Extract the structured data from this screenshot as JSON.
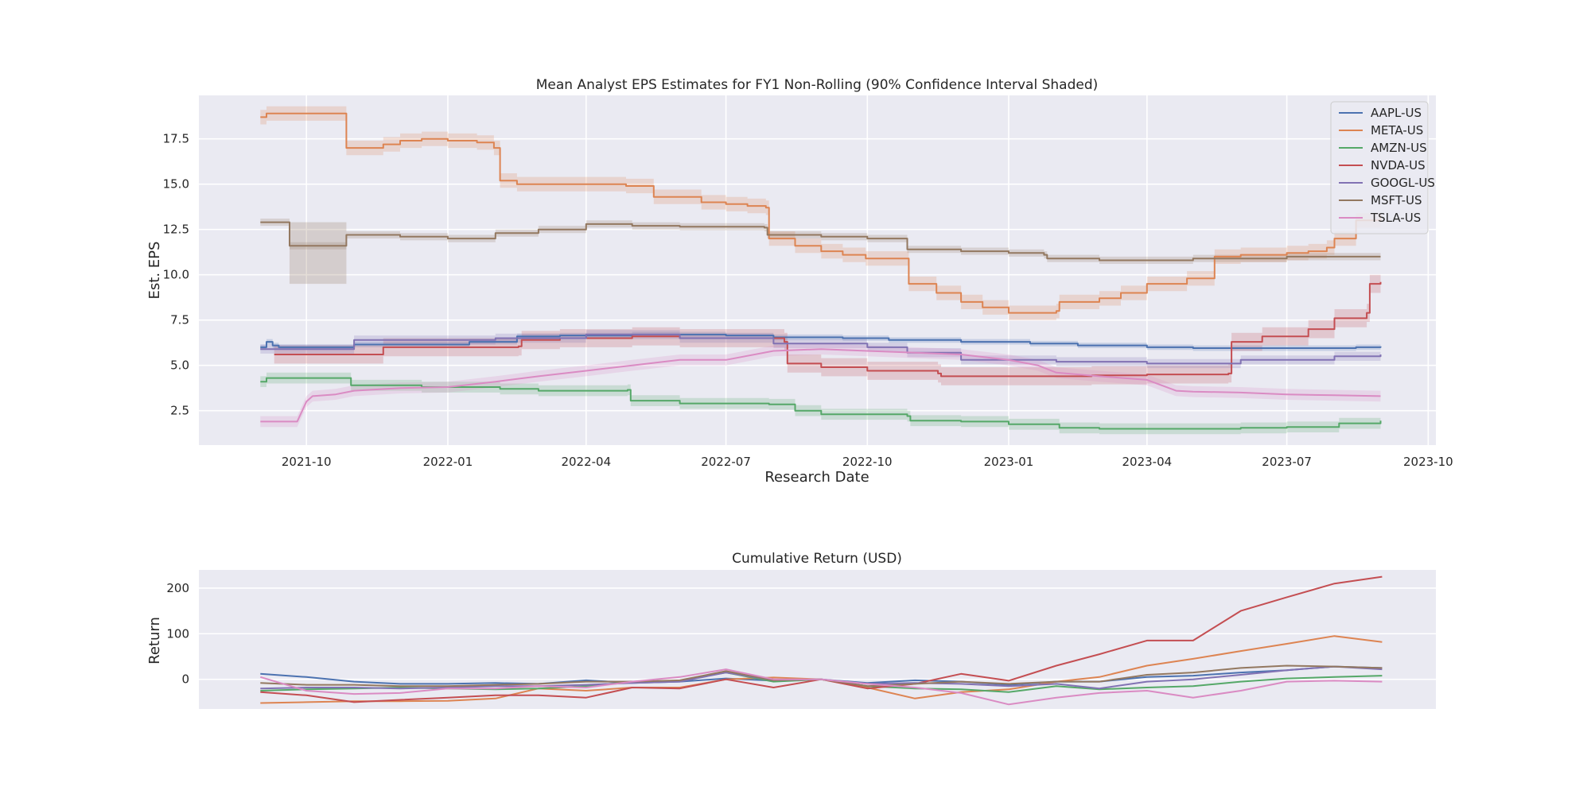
{
  "chart_data": [
    {
      "type": "line",
      "title": "Mean Analyst EPS Estimates for FY1 Non-Rolling (90% Confidence Interval Shaded)",
      "xlabel": "Research Date",
      "ylabel": "Est. EPS",
      "x_is_date": true,
      "xlim": [
        "2021-07-23",
        "2023-10-06"
      ],
      "ylim": [
        0.6,
        19.9
      ],
      "xticks": [
        "2021-10-01",
        "2022-01-01",
        "2022-04-01",
        "2022-07-01",
        "2022-10-01",
        "2023-01-01",
        "2023-04-01",
        "2023-07-01",
        "2023-10-01"
      ],
      "xtick_labels": [
        "2021-10",
        "2022-01",
        "2022-04",
        "2022-07",
        "2022-10",
        "2023-01",
        "2023-04",
        "2023-07",
        "2023-10"
      ],
      "yticks": [
        2.5,
        5.0,
        7.5,
        10.0,
        12.5,
        15.0,
        17.5
      ],
      "ytick_labels": [
        "2.5",
        "5.0",
        "7.5",
        "10.0",
        "12.5",
        "15.0",
        "17.5"
      ],
      "grid": true,
      "legend_position": "top-right",
      "series": [
        {
          "name": "AAPL-US",
          "color": "#4c72b0",
          "ci": 0.15,
          "step": true,
          "x": [
            "2021-09-01",
            "2021-09-05",
            "2021-09-09",
            "2021-09-13",
            "2021-11-01",
            "2022-01-15",
            "2022-02-15",
            "2022-03-15",
            "2022-05-01",
            "2022-07-01",
            "2022-08-01",
            "2022-09-15",
            "2022-10-15",
            "2022-12-01",
            "2023-01-15",
            "2023-02-15",
            "2023-04-01",
            "2023-05-01",
            "2023-07-01",
            "2023-08-15",
            "2023-08-31"
          ],
          "y": [
            6.0,
            6.3,
            6.1,
            6.0,
            6.15,
            6.3,
            6.6,
            6.65,
            6.7,
            6.65,
            6.55,
            6.5,
            6.4,
            6.3,
            6.2,
            6.1,
            6.0,
            5.95,
            5.95,
            6.0,
            6.05
          ]
        },
        {
          "name": "META-US",
          "color": "#dd8452",
          "ci": 0.4,
          "step": true,
          "x": [
            "2021-09-01",
            "2021-09-05",
            "2021-10-25",
            "2021-10-27",
            "2021-11-20",
            "2021-12-01",
            "2021-12-15",
            "2022-01-01",
            "2022-01-20",
            "2022-01-31",
            "2022-02-04",
            "2022-02-15",
            "2022-03-01",
            "2022-04-27",
            "2022-05-15",
            "2022-06-01",
            "2022-06-15",
            "2022-07-01",
            "2022-07-15",
            "2022-07-27",
            "2022-07-29",
            "2022-08-15",
            "2022-09-01",
            "2022-09-15",
            "2022-09-30",
            "2022-10-26",
            "2022-10-28",
            "2022-11-15",
            "2022-12-01",
            "2022-12-15",
            "2023-01-01",
            "2023-02-01",
            "2023-02-03",
            "2023-03-01",
            "2023-03-15",
            "2023-04-01",
            "2023-04-27",
            "2023-05-15",
            "2023-06-01",
            "2023-07-01",
            "2023-07-15",
            "2023-07-27",
            "2023-08-01",
            "2023-08-15",
            "2023-08-31"
          ],
          "y": [
            18.7,
            18.9,
            18.9,
            17.0,
            17.2,
            17.4,
            17.5,
            17.4,
            17.3,
            17.0,
            15.2,
            15.0,
            15.0,
            14.9,
            14.3,
            14.3,
            14.0,
            13.9,
            13.8,
            13.7,
            12.0,
            11.6,
            11.3,
            11.1,
            10.9,
            10.9,
            9.5,
            9.0,
            8.5,
            8.2,
            7.9,
            8.0,
            8.5,
            8.7,
            9.0,
            9.5,
            9.8,
            11.0,
            11.1,
            11.2,
            11.3,
            11.5,
            12.0,
            13.0,
            13.3
          ]
        },
        {
          "name": "AMZN-US",
          "color": "#55a868",
          "ci": 0.3,
          "step": true,
          "x": [
            "2021-09-01",
            "2021-09-05",
            "2021-10-28",
            "2021-10-30",
            "2021-12-15",
            "2022-02-04",
            "2022-03-01",
            "2022-04-28",
            "2022-04-30",
            "2022-06-01",
            "2022-07-29",
            "2022-08-15",
            "2022-09-01",
            "2022-10-27",
            "2022-10-29",
            "2022-12-01",
            "2023-01-01",
            "2023-02-03",
            "2023-03-01",
            "2023-04-27",
            "2023-05-15",
            "2023-06-01",
            "2023-07-01",
            "2023-08-04",
            "2023-08-31"
          ],
          "y": [
            4.1,
            4.3,
            4.3,
            3.9,
            3.8,
            3.7,
            3.6,
            3.65,
            3.05,
            2.9,
            2.85,
            2.5,
            2.3,
            2.2,
            1.95,
            1.9,
            1.75,
            1.55,
            1.5,
            1.5,
            1.5,
            1.55,
            1.6,
            1.8,
            1.95
          ]
        },
        {
          "name": "NVDA-US",
          "color": "#c44e52",
          "ci": 0.5,
          "step": true,
          "x": [
            "2021-09-10",
            "2021-11-18",
            "2021-11-20",
            "2022-02-16",
            "2022-02-18",
            "2022-03-15",
            "2022-05-01",
            "2022-06-01",
            "2022-08-08",
            "2022-08-10",
            "2022-09-01",
            "2022-10-01",
            "2022-11-16",
            "2022-11-18",
            "2023-01-01",
            "2023-02-22",
            "2023-02-24",
            "2023-04-01",
            "2023-05-24",
            "2023-05-26",
            "2023-06-15",
            "2023-07-15",
            "2023-08-01",
            "2023-08-22",
            "2023-08-24",
            "2023-08-31"
          ],
          "y": [
            5.6,
            5.6,
            6.0,
            6.05,
            6.4,
            6.5,
            6.6,
            6.5,
            6.3,
            5.1,
            4.9,
            4.7,
            4.55,
            4.4,
            4.4,
            4.4,
            4.45,
            4.5,
            4.55,
            6.3,
            6.6,
            7.0,
            7.6,
            7.9,
            9.5,
            9.6
          ]
        },
        {
          "name": "GOOGL-US",
          "color": "#8172b3",
          "ci": 0.25,
          "step": true,
          "x": [
            "2021-09-01",
            "2021-11-01",
            "2022-02-01",
            "2022-04-01",
            "2022-06-01",
            "2022-08-01",
            "2022-10-01",
            "2022-10-27",
            "2022-12-01",
            "2023-02-01",
            "2023-04-01",
            "2023-06-01",
            "2023-08-01",
            "2023-08-31"
          ],
          "y": [
            5.9,
            6.4,
            6.5,
            6.7,
            6.5,
            6.2,
            6.0,
            5.7,
            5.3,
            5.2,
            5.1,
            5.3,
            5.5,
            5.6
          ]
        },
        {
          "name": "MSFT-US",
          "color": "#937860",
          "ci": 0.2,
          "step": true,
          "x": [
            "2021-09-01",
            "2021-09-08",
            "2021-09-20",
            "2021-10-27",
            "2021-12-01",
            "2022-01-01",
            "2022-02-01",
            "2022-03-01",
            "2022-04-01",
            "2022-05-01",
            "2022-06-01",
            "2022-07-26",
            "2022-07-28",
            "2022-09-01",
            "2022-10-01",
            "2022-10-25",
            "2022-10-27",
            "2022-12-01",
            "2023-01-01",
            "2023-01-24",
            "2023-01-26",
            "2023-03-01",
            "2023-05-01",
            "2023-07-01",
            "2023-08-31"
          ],
          "y": [
            12.9,
            12.9,
            11.6,
            12.2,
            12.1,
            12.0,
            12.3,
            12.5,
            12.8,
            12.7,
            12.65,
            12.6,
            12.2,
            12.1,
            12.0,
            12.0,
            11.4,
            11.3,
            11.2,
            11.1,
            10.9,
            10.8,
            10.9,
            11.0,
            11.0
          ],
          "ci_band": {
            "x_start": "2021-09-20",
            "x_end": "2021-10-27",
            "lower": 9.5,
            "upper": 12.9
          }
        },
        {
          "name": "TSLA-US",
          "color": "#da8bc3",
          "ci": 0.3,
          "step": false,
          "x": [
            "2021-09-01",
            "2021-09-25",
            "2021-10-01",
            "2021-10-05",
            "2021-10-20",
            "2021-11-01",
            "2021-12-01",
            "2022-01-01",
            "2022-02-01",
            "2022-03-01",
            "2022-04-01",
            "2022-05-01",
            "2022-06-01",
            "2022-07-01",
            "2022-08-01",
            "2022-09-01",
            "2022-10-01",
            "2022-11-01",
            "2022-12-01",
            "2023-01-01",
            "2023-01-20",
            "2023-02-01",
            "2023-03-01",
            "2023-04-01",
            "2023-04-20",
            "2023-05-01",
            "2023-06-01",
            "2023-07-01",
            "2023-08-01",
            "2023-08-31"
          ],
          "y": [
            1.9,
            1.9,
            3.0,
            3.3,
            3.4,
            3.6,
            3.75,
            3.8,
            4.1,
            4.4,
            4.7,
            5.0,
            5.3,
            5.3,
            5.8,
            5.9,
            5.8,
            5.7,
            5.6,
            5.3,
            5.0,
            4.6,
            4.4,
            4.2,
            3.6,
            3.55,
            3.5,
            3.4,
            3.35,
            3.3
          ]
        }
      ]
    },
    {
      "type": "line",
      "title": "Cumulative Return (USD)",
      "xlabel": "",
      "ylabel": "Return",
      "x_is_date": true,
      "xlim": [
        "2021-07-23",
        "2023-10-06"
      ],
      "ylim": [
        -65,
        240
      ],
      "yticks": [
        0,
        100,
        200
      ],
      "ytick_labels": [
        "0",
        "100",
        "200"
      ],
      "grid": true,
      "x": [
        "2021-09-01",
        "2021-10-01",
        "2021-11-01",
        "2021-12-01",
        "2022-01-01",
        "2022-02-01",
        "2022-03-01",
        "2022-04-01",
        "2022-05-01",
        "2022-06-01",
        "2022-07-01",
        "2022-08-01",
        "2022-09-01",
        "2022-10-01",
        "2022-11-01",
        "2022-12-01",
        "2023-01-01",
        "2023-02-01",
        "2023-03-01",
        "2023-04-01",
        "2023-05-01",
        "2023-06-01",
        "2023-07-01",
        "2023-08-01",
        "2023-09-01"
      ],
      "series": [
        {
          "name": "AAPL-US",
          "color": "#4c72b0",
          "values": [
            12,
            5,
            -5,
            -10,
            -10,
            -8,
            -10,
            -2,
            -8,
            -5,
            2,
            -3,
            0,
            -8,
            -2,
            -5,
            -12,
            -5,
            -5,
            5,
            8,
            15,
            20,
            28,
            25
          ]
        },
        {
          "name": "META-US",
          "color": "#dd8452",
          "values": [
            -52,
            -50,
            -48,
            -48,
            -47,
            -42,
            -20,
            -25,
            -18,
            -18,
            0,
            4,
            0,
            -18,
            -42,
            -28,
            -22,
            -5,
            5,
            30,
            45,
            62,
            78,
            95,
            82
          ]
        },
        {
          "name": "AMZN-US",
          "color": "#55a868",
          "values": [
            -25,
            -22,
            -20,
            -18,
            -20,
            -22,
            -20,
            -15,
            -5,
            -3,
            15,
            -5,
            0,
            -15,
            -20,
            -22,
            -28,
            -15,
            -22,
            -18,
            -15,
            -5,
            2,
            5,
            8
          ]
        },
        {
          "name": "NVDA-US",
          "color": "#c44e52",
          "values": [
            -28,
            -35,
            -50,
            -45,
            -40,
            -35,
            -35,
            -40,
            -18,
            -20,
            0,
            -18,
            0,
            -20,
            -10,
            12,
            -3,
            30,
            55,
            85,
            85,
            150,
            180,
            210,
            225
          ]
        },
        {
          "name": "GOOGL-US",
          "color": "#8172b3",
          "values": [
            -20,
            -18,
            -18,
            -20,
            -18,
            -15,
            -15,
            -12,
            -8,
            -5,
            15,
            -2,
            0,
            -10,
            -8,
            -10,
            -15,
            -10,
            -20,
            -5,
            0,
            10,
            20,
            28,
            22
          ]
        },
        {
          "name": "MSFT-US",
          "color": "#937860",
          "values": [
            -8,
            -12,
            -12,
            -15,
            -15,
            -12,
            -10,
            -5,
            -5,
            -2,
            18,
            -2,
            0,
            -15,
            -10,
            -5,
            -10,
            -5,
            -5,
            10,
            15,
            25,
            30,
            28,
            25
          ]
        },
        {
          "name": "TSLA-US",
          "color": "#da8bc3",
          "values": [
            5,
            -25,
            -32,
            -30,
            -20,
            -20,
            -15,
            -18,
            -5,
            5,
            22,
            0,
            0,
            -10,
            -18,
            -30,
            -55,
            -40,
            -30,
            -25,
            -40,
            -25,
            -5,
            -3,
            -5
          ]
        }
      ]
    }
  ]
}
